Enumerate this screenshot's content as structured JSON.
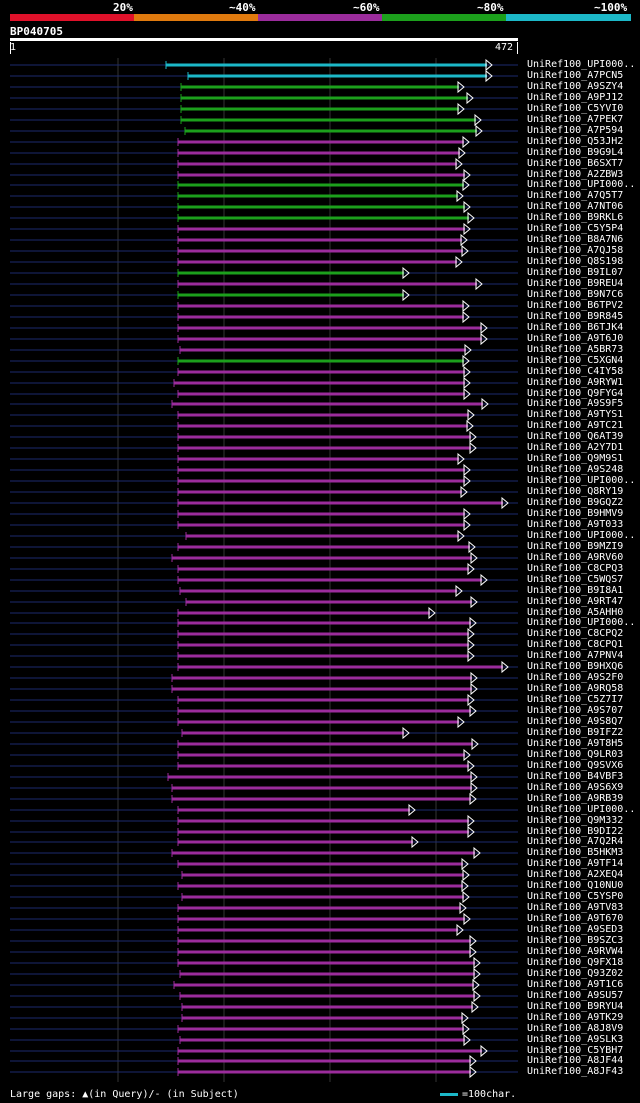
{
  "legend": {
    "labels": [
      "20%",
      "~40%",
      "~60%",
      "~80%",
      "~100%"
    ],
    "colors": [
      "#e0112a",
      "#e07a0e",
      "#9b2c9c",
      "#1ca01c",
      "#1cb8c8"
    ]
  },
  "query": {
    "name": "BP040705",
    "start": "1",
    "end": "472"
  },
  "hits": [
    {
      "name": "UniRef100_UPI000..",
      "tier": 4
    },
    {
      "name": "UniRef100_A7PCN5",
      "tier": 4
    },
    {
      "name": "UniRef100_A9SZY4",
      "tier": 3
    },
    {
      "name": "UniRef100_A9PJ12",
      "tier": 3
    },
    {
      "name": "UniRef100_C5YVI0",
      "tier": 3
    },
    {
      "name": "UniRef100_A7PEK7",
      "tier": 3
    },
    {
      "name": "UniRef100_A7P594",
      "tier": 3
    },
    {
      "name": "UniRef100_Q53JH2",
      "tier": 2
    },
    {
      "name": "UniRef100_B9G9L4",
      "tier": 2
    },
    {
      "name": "UniRef100_B6SXT7",
      "tier": 2
    },
    {
      "name": "UniRef100_A2ZBW3",
      "tier": 2
    },
    {
      "name": "UniRef100_UPI000..",
      "tier": 3
    },
    {
      "name": "UniRef100_A7Q5T7",
      "tier": 3
    },
    {
      "name": "UniRef100_A7NT06",
      "tier": 3
    },
    {
      "name": "UniRef100_B9RKL6",
      "tier": 3
    },
    {
      "name": "UniRef100_C5Y5P4",
      "tier": 2
    },
    {
      "name": "UniRef100_B8A7N6",
      "tier": 2
    },
    {
      "name": "UniRef100_A7QJ58",
      "tier": 2
    },
    {
      "name": "UniRef100_Q8S198",
      "tier": 2
    },
    {
      "name": "UniRef100_B9IL07",
      "tier": 3
    },
    {
      "name": "UniRef100_B9REU4",
      "tier": 2
    },
    {
      "name": "UniRef100_B9N7C6",
      "tier": 3
    },
    {
      "name": "UniRef100_B6TPV2",
      "tier": 2
    },
    {
      "name": "UniRef100_B9R845",
      "tier": 2
    },
    {
      "name": "UniRef100_B6TJK4",
      "tier": 2
    },
    {
      "name": "UniRef100_A9T6J0",
      "tier": 2
    },
    {
      "name": "UniRef100_A5BR73",
      "tier": 2
    },
    {
      "name": "UniRef100_C5XGN4",
      "tier": 3
    },
    {
      "name": "UniRef100_C4IY58",
      "tier": 2
    },
    {
      "name": "UniRef100_A9RYW1",
      "tier": 2
    },
    {
      "name": "UniRef100_Q9FYG4",
      "tier": 2
    },
    {
      "name": "UniRef100_A9S9F5",
      "tier": 2
    },
    {
      "name": "UniRef100_A9TYS1",
      "tier": 2
    },
    {
      "name": "UniRef100_A9TC21",
      "tier": 2
    },
    {
      "name": "UniRef100_Q6AT39",
      "tier": 2
    },
    {
      "name": "UniRef100_A2Y7D1",
      "tier": 2
    },
    {
      "name": "UniRef100_Q9M9S1",
      "tier": 2
    },
    {
      "name": "UniRef100_A9S248",
      "tier": 2
    },
    {
      "name": "UniRef100_UPI000..",
      "tier": 2
    },
    {
      "name": "UniRef100_Q8RY19",
      "tier": 2
    },
    {
      "name": "UniRef100_B9GQZ2",
      "tier": 2
    },
    {
      "name": "UniRef100_B9HMV9",
      "tier": 2
    },
    {
      "name": "UniRef100_A9T033",
      "tier": 2
    },
    {
      "name": "UniRef100_UPI000..",
      "tier": 2
    },
    {
      "name": "UniRef100_B9MZI9",
      "tier": 2
    },
    {
      "name": "UniRef100_A9RV60",
      "tier": 2
    },
    {
      "name": "UniRef100_C8CPQ3",
      "tier": 2
    },
    {
      "name": "UniRef100_C5WQS7",
      "tier": 2
    },
    {
      "name": "UniRef100_B9I8A1",
      "tier": 2
    },
    {
      "name": "UniRef100_A9RT47",
      "tier": 2
    },
    {
      "name": "UniRef100_A5AHH0",
      "tier": 2
    },
    {
      "name": "UniRef100_UPI000..",
      "tier": 2
    },
    {
      "name": "UniRef100_C8CPQ2",
      "tier": 2
    },
    {
      "name": "UniRef100_C8CPQ1",
      "tier": 2
    },
    {
      "name": "UniRef100_A7PNV4",
      "tier": 2
    },
    {
      "name": "UniRef100_B9HXQ6",
      "tier": 2
    },
    {
      "name": "UniRef100_A9S2F0",
      "tier": 2
    },
    {
      "name": "UniRef100_A9RQ58",
      "tier": 2
    },
    {
      "name": "UniRef100_C5Z7I7",
      "tier": 2
    },
    {
      "name": "UniRef100_A9S707",
      "tier": 2
    },
    {
      "name": "UniRef100_A9S8Q7",
      "tier": 2
    },
    {
      "name": "UniRef100_B9IFZ2",
      "tier": 2
    },
    {
      "name": "UniRef100_A9T8H5",
      "tier": 2
    },
    {
      "name": "UniRef100_Q9LR03",
      "tier": 2
    },
    {
      "name": "UniRef100_Q9SVX6",
      "tier": 2
    },
    {
      "name": "UniRef100_B4VBF3",
      "tier": 2
    },
    {
      "name": "UniRef100_A9S6X9",
      "tier": 2
    },
    {
      "name": "UniRef100_A9RB39",
      "tier": 2
    },
    {
      "name": "UniRef100_UPI000..",
      "tier": 2
    },
    {
      "name": "UniRef100_Q9M332",
      "tier": 2
    },
    {
      "name": "UniRef100_B9DI22",
      "tier": 2
    },
    {
      "name": "UniRef100_A7Q2R4",
      "tier": 2
    },
    {
      "name": "UniRef100_B5HKM3",
      "tier": 2
    },
    {
      "name": "UniRef100_A9TF14",
      "tier": 2
    },
    {
      "name": "UniRef100_A2XEQ4",
      "tier": 2
    },
    {
      "name": "UniRef100_Q10NU0",
      "tier": 2
    },
    {
      "name": "UniRef100_C5YSP0",
      "tier": 2
    },
    {
      "name": "UniRef100_A9TV83",
      "tier": 2
    },
    {
      "name": "UniRef100_A9T670",
      "tier": 2
    },
    {
      "name": "UniRef100_A9SED3",
      "tier": 2
    },
    {
      "name": "UniRef100_B9SZC3",
      "tier": 2
    },
    {
      "name": "UniRef100_A9RVW4",
      "tier": 2
    },
    {
      "name": "UniRef100_Q9FX18",
      "tier": 2
    },
    {
      "name": "UniRef100_Q93Z02",
      "tier": 2
    },
    {
      "name": "UniRef100_A9T1C6",
      "tier": 2
    },
    {
      "name": "UniRef100_A9SU57",
      "tier": 2
    },
    {
      "name": "UniRef100_B9RYU4",
      "tier": 2
    },
    {
      "name": "UniRef100_A9TK29",
      "tier": 2
    },
    {
      "name": "UniRef100_A8J8V9",
      "tier": 2
    },
    {
      "name": "UniRef100_A9SLK3",
      "tier": 2
    },
    {
      "name": "UniRef100_C5YBH7",
      "tier": 2
    },
    {
      "name": "UniRef100_A8JF44",
      "tier": 2
    },
    {
      "name": "UniRef100_A8JF43",
      "tier": 2
    }
  ],
  "footer": {
    "gaps_text": "Large gaps: ▲(in Query)/- (in Subject)",
    "scale_text": "=100char."
  }
}
